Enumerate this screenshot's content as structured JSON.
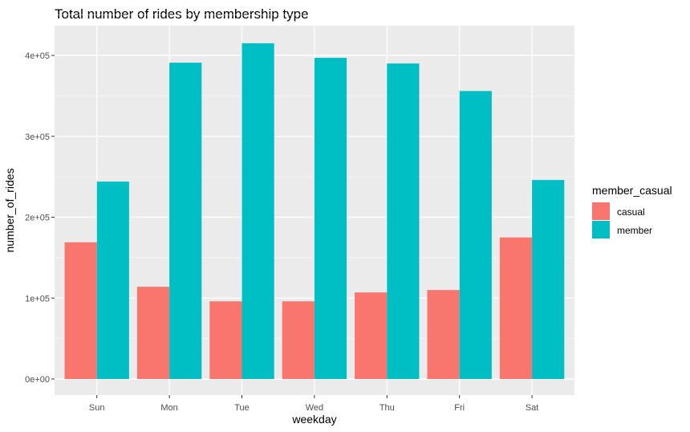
{
  "chart_data": {
    "type": "bar",
    "title": "Total number of rides by membership type",
    "xlabel": "weekday",
    "ylabel": "number_of_rides",
    "categories": [
      "Sun",
      "Mon",
      "Tue",
      "Wed",
      "Thu",
      "Fri",
      "Sat"
    ],
    "series": [
      {
        "name": "casual",
        "color": "#F8766D",
        "values": [
          169000,
          114000,
          96000,
          96000,
          107000,
          110000,
          175000
        ]
      },
      {
        "name": "member",
        "color": "#00BFC4",
        "values": [
          244000,
          391000,
          415000,
          397000,
          390000,
          356000,
          246000
        ]
      }
    ],
    "ylim": [
      0,
      426000
    ],
    "yticks": [
      {
        "value": 0,
        "label": "0e+00"
      },
      {
        "value": 100000,
        "label": "1e+05"
      },
      {
        "value": 200000,
        "label": "2e+05"
      },
      {
        "value": 300000,
        "label": "3e+05"
      },
      {
        "value": 400000,
        "label": "4e+05"
      }
    ],
    "legend": {
      "title": "member_casual",
      "position": "right"
    },
    "grid": true,
    "panel_background": "#EBEBEB"
  }
}
